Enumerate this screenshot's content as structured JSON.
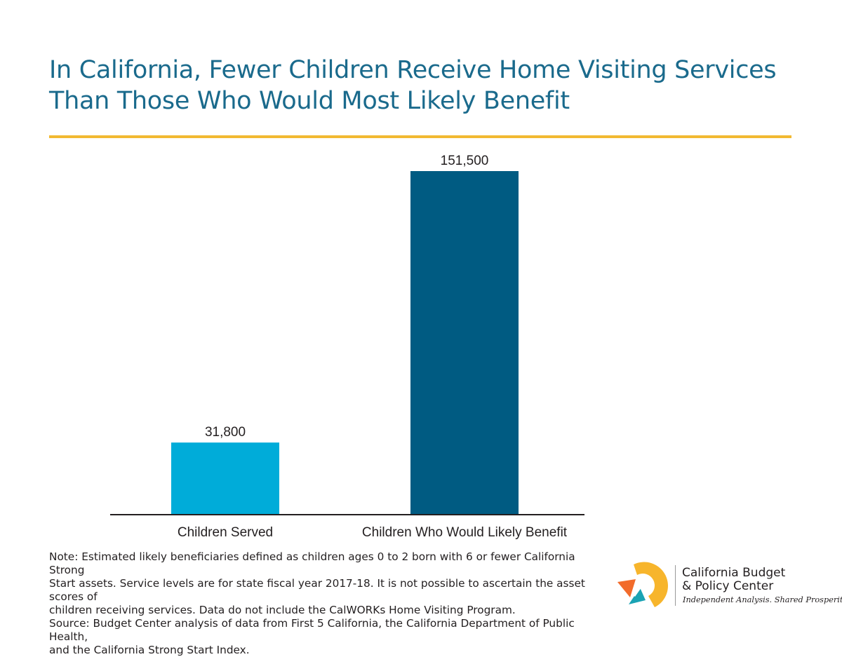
{
  "header": {
    "title_lines": [
      "In California, Fewer Children Receive Home Visiting Services",
      "Than Those Who Would Most Likely Benefit"
    ]
  },
  "chart_data": {
    "type": "bar",
    "categories": [
      "Children Served",
      "Children Who Would Likely Benefit"
    ],
    "values": [
      31800,
      151500
    ],
    "value_labels": [
      "31,800",
      "151,500"
    ],
    "colors": [
      "#00acd9",
      "#005b82"
    ],
    "xlabel": "",
    "ylabel": "",
    "ylim": [
      0,
      151500
    ],
    "grid": false,
    "legend": "none"
  },
  "footer": {
    "note_lines": [
      "Note: Estimated likely beneficiaries defined as children ages 0 to 2 born with 6 or fewer California Strong",
      "Start assets. Service levels are for state fiscal year 2017-18. It is not possible to ascertain the asset scores of",
      "children receiving services. Data do not include the CalWORKs Home Visiting Program.",
      "Source: Budget Center analysis of data from First 5 California, the California Department of Public Health,",
      "and the California Strong Start Index."
    ]
  },
  "logo": {
    "name_lines": [
      "California Budget",
      "& Policy Center"
    ],
    "tagline": "Independent Analysis. Shared Prosperity.",
    "mark_icon": "arrow-circle-icon",
    "colors": {
      "yellow": "#f7b52c",
      "orange": "#f26b2b",
      "teal": "#1aa3b4"
    }
  },
  "colors": {
    "title": "#1a6a8c",
    "rule": "#f2b932",
    "text": "#231f20"
  }
}
